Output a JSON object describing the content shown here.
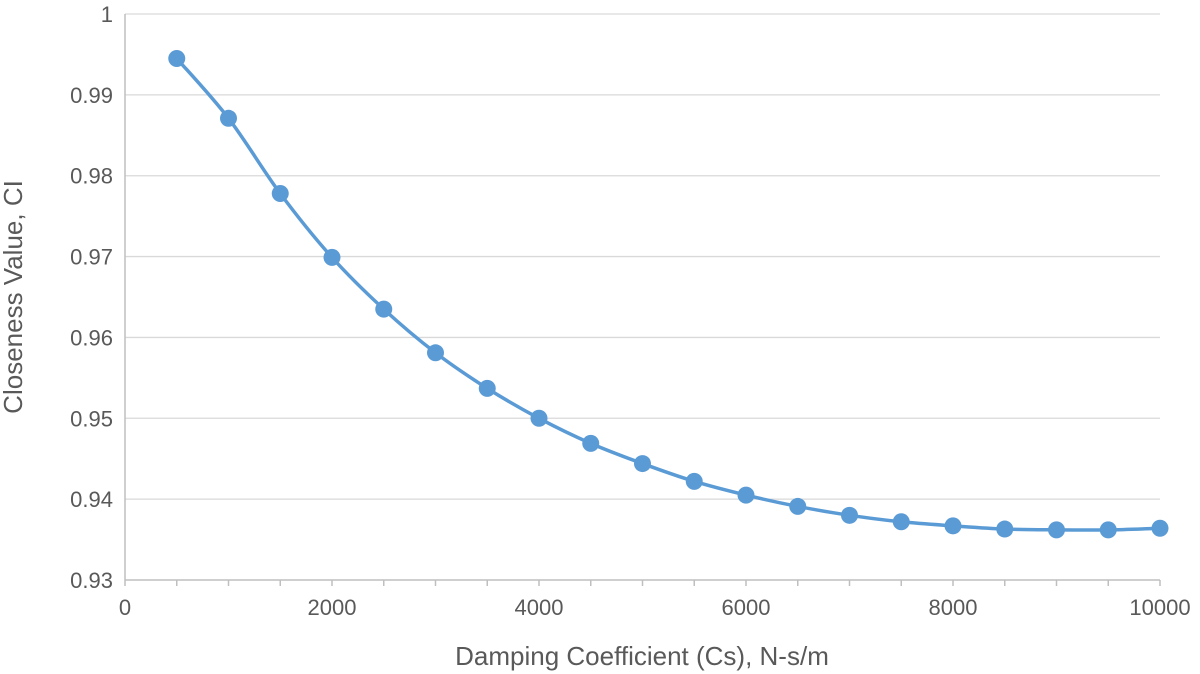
{
  "chart_data": {
    "type": "line",
    "title": "",
    "xlabel": "Damping Coefficient (Cs), N-s/m",
    "ylabel": "Closeness Value, CI",
    "xlim": [
      0,
      10000
    ],
    "ylim": [
      0.93,
      1
    ],
    "x_ticks": [
      "0",
      "2000",
      "4000",
      "6000",
      "8000",
      "10000"
    ],
    "y_ticks": [
      "0.93",
      "0.94",
      "0.95",
      "0.96",
      "0.97",
      "0.98",
      "0.99",
      "1"
    ],
    "grid": "horizontal",
    "legend": "none",
    "smooth": true,
    "markers": true,
    "colors": {
      "series": "#5b9bd5",
      "grid": "#d9d9d9",
      "axis": "#bfbfbf",
      "text": "#595959"
    },
    "x": [
      500,
      1000,
      1500,
      2000,
      2500,
      3000,
      3500,
      4000,
      4500,
      5000,
      5500,
      6000,
      6500,
      7000,
      7500,
      8000,
      8500,
      9000,
      9500,
      10000
    ],
    "series": [
      {
        "values": [
          0.9945,
          0.9871,
          0.9778,
          0.9699,
          0.9635,
          0.9581,
          0.9537,
          0.95,
          0.9469,
          0.9444,
          0.9422,
          0.9405,
          0.9391,
          0.938,
          0.9372,
          0.9367,
          0.9363,
          0.9362,
          0.9362,
          0.9364
        ]
      }
    ]
  }
}
